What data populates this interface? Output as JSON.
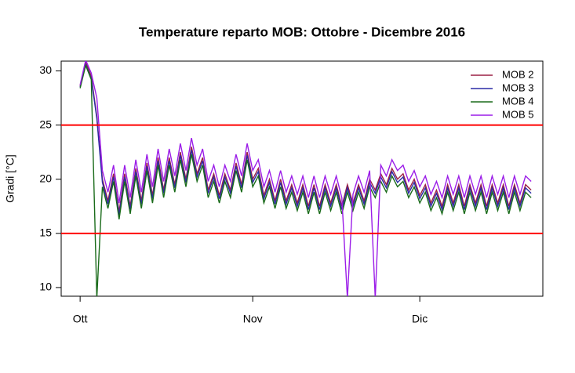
{
  "chart_data": {
    "type": "line",
    "title": "Temperature reparto MOB: Ottobre - Dicembre 2016",
    "y_label": "Gradi [°C]",
    "x": [
      0,
      1,
      2,
      3,
      4,
      5,
      6,
      7,
      8,
      9,
      10,
      11,
      12,
      13,
      14,
      15,
      16,
      17,
      18,
      19,
      20,
      21,
      22,
      23,
      24,
      25,
      26,
      27,
      28,
      29,
      30,
      31,
      32,
      33,
      34,
      35,
      36,
      37,
      38,
      39,
      40,
      41,
      42,
      43,
      44,
      45,
      46,
      47,
      48,
      49,
      50,
      51,
      52,
      53,
      54,
      55,
      56,
      57,
      58,
      59,
      60,
      61,
      62,
      63,
      64,
      65,
      66,
      67,
      68,
      69,
      70,
      71,
      72,
      73,
      74,
      75,
      76,
      77,
      78,
      79,
      80,
      81
    ],
    "xlim": [
      -3.4,
      83.1
    ],
    "xticks": [
      {
        "value": 0,
        "label": "Ott"
      },
      {
        "value": 31,
        "label": "Nov"
      },
      {
        "value": 61,
        "label": "Dic"
      }
    ],
    "ylim": [
      9.2,
      30.9
    ],
    "yticks": [
      10,
      15,
      20,
      25,
      30
    ],
    "hlines": [
      25,
      15
    ],
    "hline_color": "#ff0000",
    "legend": "topright",
    "series": [
      {
        "name": "MOB 2",
        "color": "#9b2045",
        "values": [
          28.6,
          30.8,
          29.5,
          25.8,
          20,
          18,
          20.5,
          17,
          20.5,
          17.5,
          21,
          18,
          21.5,
          18.5,
          22,
          19,
          22,
          19.5,
          22.5,
          20,
          23,
          20.5,
          22,
          19,
          20.5,
          18.5,
          20.5,
          19,
          21.5,
          19.5,
          22.5,
          20,
          21,
          18.5,
          20,
          18,
          20,
          18,
          19.5,
          17.8,
          19.5,
          17.5,
          19.5,
          17.5,
          19.5,
          17.8,
          19.5,
          17.5,
          19.5,
          17.8,
          19.5,
          18,
          20,
          19,
          20.5,
          19.5,
          21,
          20,
          20.5,
          19,
          20,
          18.5,
          19.5,
          17.8,
          19,
          17.5,
          19.5,
          17.8,
          19.5,
          17.5,
          19.5,
          17.8,
          19.5,
          17.5,
          19.5,
          17.8,
          19.5,
          17.5,
          19.5,
          17.8,
          19.5,
          19
        ]
      },
      {
        "name": "MOB 3",
        "color": "#2b2ba6",
        "values": [
          28.5,
          30.6,
          29.3,
          25.6,
          19.7,
          17.7,
          20.2,
          16.7,
          20.2,
          17.2,
          20.7,
          17.7,
          21.2,
          18.2,
          21.7,
          18.7,
          21.7,
          19.2,
          22.2,
          19.7,
          22.7,
          20.2,
          21.7,
          18.7,
          20.2,
          18.2,
          20.2,
          18.7,
          21.2,
          19.2,
          22.2,
          19.7,
          20.7,
          18.2,
          19.7,
          17.7,
          19.7,
          17.7,
          19.2,
          17.5,
          19.2,
          17.2,
          19.2,
          17.2,
          19.2,
          17.5,
          19.2,
          17.2,
          19.2,
          17.5,
          19.2,
          17.7,
          19.7,
          18.7,
          20.2,
          19.2,
          20.7,
          19.7,
          20.2,
          18.7,
          19.7,
          18.2,
          19.2,
          17.5,
          18.7,
          17.2,
          19.2,
          17.5,
          19.2,
          17.2,
          19.2,
          17.5,
          19.2,
          17.2,
          19.2,
          17.5,
          19.2,
          17.2,
          19.2,
          17.5,
          19.2,
          18.7
        ]
      },
      {
        "name": "MOB 4",
        "color": "#1a6b1a",
        "values": [
          28.4,
          30.5,
          29.2,
          9,
          19.3,
          17.3,
          19.8,
          16.3,
          19.8,
          16.8,
          20.3,
          17.3,
          20.8,
          17.8,
          21.3,
          18.3,
          21.3,
          18.8,
          21.8,
          19.3,
          22.3,
          19.8,
          21.3,
          18.3,
          19.8,
          17.8,
          19.8,
          18.3,
          20.8,
          18.8,
          21.8,
          19.3,
          20.3,
          17.8,
          19.3,
          17.3,
          19.3,
          17.3,
          18.8,
          17.1,
          18.8,
          16.8,
          18.8,
          16.8,
          18.8,
          17.1,
          18.8,
          16.8,
          18.8,
          17.1,
          18.8,
          17.3,
          19.3,
          18.3,
          19.8,
          18.8,
          20.3,
          19.3,
          19.8,
          18.3,
          19.3,
          17.8,
          18.8,
          17.1,
          18.3,
          16.8,
          18.8,
          17.1,
          18.8,
          16.8,
          18.8,
          17.1,
          18.8,
          16.8,
          18.8,
          17.1,
          18.8,
          16.8,
          18.8,
          17.1,
          18.8,
          18.3
        ]
      },
      {
        "name": "MOB 5",
        "color": "#9b1de8",
        "values": [
          28.7,
          31,
          29.8,
          27.5,
          20.8,
          18.8,
          21.3,
          17.8,
          21.3,
          18.3,
          21.8,
          18.8,
          22.3,
          19.3,
          22.8,
          19.8,
          22.8,
          20.3,
          23.3,
          20.8,
          23.8,
          21.3,
          22.8,
          19.8,
          21.3,
          19.3,
          21.3,
          19.8,
          22.3,
          20.3,
          23.3,
          20.8,
          21.8,
          19.3,
          20.8,
          18.8,
          20.8,
          18.8,
          20.3,
          18.6,
          20.3,
          18.3,
          20.3,
          18.3,
          20.3,
          18.6,
          20.3,
          18.3,
          9,
          18.6,
          20.3,
          18.8,
          20.8,
          9,
          21.3,
          20.3,
          21.8,
          20.8,
          21.3,
          19.8,
          20.8,
          19.3,
          20.3,
          18.6,
          19.8,
          18.3,
          20.3,
          18.6,
          20.3,
          18.3,
          20.3,
          18.6,
          20.3,
          18.3,
          20.3,
          18.6,
          20.3,
          18.3,
          20.3,
          18.6,
          20.3,
          19.8
        ]
      }
    ]
  }
}
